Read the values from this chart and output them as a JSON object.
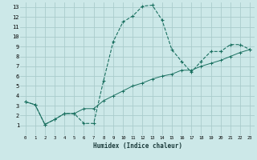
{
  "xlabel": "Humidex (Indice chaleur)",
  "background_color": "#cce8e8",
  "grid_color": "#aacccc",
  "line_color": "#1a7060",
  "xlim": [
    -0.5,
    23.5
  ],
  "ylim": [
    0,
    13.5
  ],
  "xticks": [
    0,
    1,
    2,
    3,
    4,
    5,
    6,
    7,
    8,
    9,
    10,
    11,
    12,
    13,
    14,
    15,
    16,
    17,
    18,
    19,
    20,
    21,
    22,
    23
  ],
  "yticks": [
    1,
    2,
    3,
    4,
    5,
    6,
    7,
    8,
    9,
    10,
    11,
    12,
    13
  ],
  "curve1_x": [
    0,
    1,
    2,
    3,
    4,
    5,
    6,
    7,
    8,
    9,
    10,
    11,
    12,
    13,
    14,
    15,
    16,
    17,
    18,
    19,
    20,
    21,
    22,
    23
  ],
  "curve1_y": [
    3.4,
    3.1,
    1.1,
    1.6,
    2.2,
    2.2,
    1.2,
    1.2,
    5.5,
    9.5,
    11.5,
    12.1,
    13.1,
    13.2,
    11.7,
    8.7,
    7.5,
    6.4,
    7.5,
    8.5,
    8.5,
    9.2,
    9.2,
    8.7
  ],
  "curve2_x": [
    0,
    1,
    2,
    3,
    4,
    5,
    6,
    7,
    8,
    9,
    10,
    11,
    12,
    13,
    14,
    15,
    16,
    17,
    18,
    19,
    20,
    21,
    22,
    23
  ],
  "curve2_y": [
    3.4,
    3.1,
    1.1,
    1.6,
    2.2,
    2.2,
    2.7,
    2.7,
    3.5,
    4.0,
    4.5,
    5.0,
    5.3,
    5.7,
    6.0,
    6.2,
    6.6,
    6.6,
    7.0,
    7.3,
    7.6,
    8.0,
    8.4,
    8.7
  ]
}
